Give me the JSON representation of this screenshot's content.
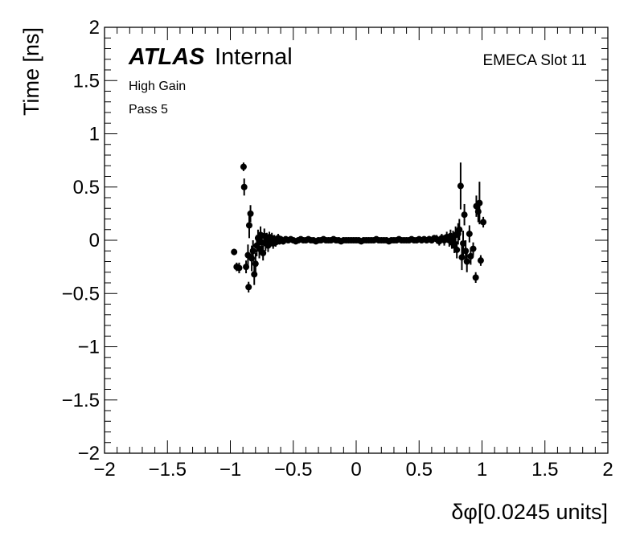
{
  "chart_data": {
    "type": "scatter",
    "xlabel": "δφ[0.0245 units]",
    "ylabel": "Time [ns]",
    "xlim": [
      -2,
      2
    ],
    "ylim": [
      -2,
      2
    ],
    "x_ticks": [
      -2,
      -1.5,
      -1,
      -0.5,
      0,
      0.5,
      1,
      1.5,
      2
    ],
    "x_tick_labels": [
      "−2",
      "−1.5",
      "−1",
      "−0.5",
      "0",
      "0.5",
      "1",
      "1.5",
      "2"
    ],
    "y_ticks": [
      -2,
      -1.5,
      -1,
      -0.5,
      0,
      0.5,
      1,
      1.5,
      2
    ],
    "y_tick_labels": [
      "−2",
      "−1.5",
      "−1",
      "−0.5",
      "0",
      "0.5",
      "1",
      "1.5",
      "2"
    ],
    "grid": false,
    "series": [
      {
        "marker_color": "#000000",
        "points": [
          {
            "x": -0.97,
            "y": -0.11,
            "err": 0.03
          },
          {
            "x": -0.95,
            "y": -0.25,
            "err": 0.04
          },
          {
            "x": -0.93,
            "y": -0.26,
            "err": 0.05
          },
          {
            "x": -0.895,
            "y": 0.69,
            "err": 0.04
          },
          {
            "x": -0.89,
            "y": 0.5,
            "err": 0.08
          },
          {
            "x": -0.875,
            "y": -0.25,
            "err": 0.06
          },
          {
            "x": -0.86,
            "y": -0.14,
            "err": 0.1
          },
          {
            "x": -0.855,
            "y": -0.44,
            "err": 0.05
          },
          {
            "x": -0.85,
            "y": 0.14,
            "err": 0.12
          },
          {
            "x": -0.84,
            "y": 0.25,
            "err": 0.08
          },
          {
            "x": -0.83,
            "y": -0.17,
            "err": 0.12
          },
          {
            "x": -0.82,
            "y": -0.1,
            "err": 0.1
          },
          {
            "x": -0.81,
            "y": -0.32,
            "err": 0.1
          },
          {
            "x": -0.8,
            "y": -0.22,
            "err": 0.1
          },
          {
            "x": -0.79,
            "y": -0.05,
            "err": 0.1
          },
          {
            "x": -0.78,
            "y": 0.02,
            "err": 0.08
          },
          {
            "x": -0.77,
            "y": -0.08,
            "err": 0.09
          },
          {
            "x": -0.76,
            "y": 0.05,
            "err": 0.08
          },
          {
            "x": -0.75,
            "y": -0.02,
            "err": 0.08
          },
          {
            "x": -0.74,
            "y": -0.12,
            "err": 0.07
          },
          {
            "x": -0.73,
            "y": 0.04,
            "err": 0.07
          },
          {
            "x": -0.72,
            "y": -0.03,
            "err": 0.07
          },
          {
            "x": -0.71,
            "y": 0.01,
            "err": 0.06
          },
          {
            "x": -0.7,
            "y": -0.05,
            "err": 0.06
          },
          {
            "x": -0.69,
            "y": 0.03,
            "err": 0.05
          },
          {
            "x": -0.68,
            "y": -0.01,
            "err": 0.05
          },
          {
            "x": -0.67,
            "y": 0.02,
            "err": 0.05
          },
          {
            "x": -0.66,
            "y": -0.03,
            "err": 0.05
          },
          {
            "x": -0.65,
            "y": 0.01,
            "err": 0.04
          },
          {
            "x": -0.64,
            "y": -0.02,
            "err": 0.04
          },
          {
            "x": -0.63,
            "y": 0.0,
            "err": 0.04
          },
          {
            "x": -0.62,
            "y": 0.02,
            "err": 0.04
          },
          {
            "x": -0.61,
            "y": -0.01,
            "err": 0.03
          },
          {
            "x": -0.6,
            "y": 0.01,
            "err": 0.03
          },
          {
            "x": -0.58,
            "y": -0.01,
            "err": 0.03
          },
          {
            "x": -0.56,
            "y": 0.01,
            "err": 0.02
          },
          {
            "x": -0.54,
            "y": 0.0,
            "err": 0.02
          },
          {
            "x": -0.52,
            "y": 0.01,
            "err": 0.02
          },
          {
            "x": -0.5,
            "y": 0.0,
            "err": 0.02
          },
          {
            "x": -0.48,
            "y": -0.01,
            "err": 0.015
          },
          {
            "x": -0.46,
            "y": 0.0,
            "err": 0.015
          },
          {
            "x": -0.44,
            "y": 0.01,
            "err": 0.015
          },
          {
            "x": -0.42,
            "y": 0.0,
            "err": 0.015
          },
          {
            "x": -0.4,
            "y": 0.0,
            "err": 0.01
          },
          {
            "x": -0.38,
            "y": 0.01,
            "err": 0.01
          },
          {
            "x": -0.36,
            "y": 0.0,
            "err": 0.01
          },
          {
            "x": -0.34,
            "y": 0.0,
            "err": 0.01
          },
          {
            "x": -0.32,
            "y": -0.01,
            "err": 0.01
          },
          {
            "x": -0.3,
            "y": 0.0,
            "err": 0.01
          },
          {
            "x": -0.28,
            "y": 0.0,
            "err": 0.01
          },
          {
            "x": -0.26,
            "y": 0.01,
            "err": 0.01
          },
          {
            "x": -0.24,
            "y": 0.0,
            "err": 0.01
          },
          {
            "x": -0.22,
            "y": 0.0,
            "err": 0.01
          },
          {
            "x": -0.2,
            "y": 0.0,
            "err": 0.01
          },
          {
            "x": -0.18,
            "y": 0.01,
            "err": 0.01
          },
          {
            "x": -0.16,
            "y": 0.0,
            "err": 0.01
          },
          {
            "x": -0.14,
            "y": 0.0,
            "err": 0.01
          },
          {
            "x": -0.12,
            "y": -0.01,
            "err": 0.01
          },
          {
            "x": -0.1,
            "y": 0.0,
            "err": 0.01
          },
          {
            "x": -0.08,
            "y": 0.0,
            "err": 0.01
          },
          {
            "x": -0.06,
            "y": 0.0,
            "err": 0.01
          },
          {
            "x": -0.04,
            "y": 0.0,
            "err": 0.01
          },
          {
            "x": -0.02,
            "y": 0.0,
            "err": 0.01
          },
          {
            "x": 0.0,
            "y": 0.0,
            "err": 0.01
          },
          {
            "x": 0.02,
            "y": 0.0,
            "err": 0.01
          },
          {
            "x": 0.04,
            "y": -0.01,
            "err": 0.01
          },
          {
            "x": 0.06,
            "y": 0.0,
            "err": 0.01
          },
          {
            "x": 0.08,
            "y": 0.0,
            "err": 0.01
          },
          {
            "x": 0.1,
            "y": 0.0,
            "err": 0.01
          },
          {
            "x": 0.12,
            "y": 0.0,
            "err": 0.01
          },
          {
            "x": 0.14,
            "y": 0.0,
            "err": 0.01
          },
          {
            "x": 0.16,
            "y": 0.01,
            "err": 0.01
          },
          {
            "x": 0.18,
            "y": 0.0,
            "err": 0.01
          },
          {
            "x": 0.2,
            "y": 0.0,
            "err": 0.01
          },
          {
            "x": 0.22,
            "y": 0.0,
            "err": 0.01
          },
          {
            "x": 0.24,
            "y": 0.0,
            "err": 0.01
          },
          {
            "x": 0.26,
            "y": -0.01,
            "err": 0.01
          },
          {
            "x": 0.28,
            "y": 0.0,
            "err": 0.01
          },
          {
            "x": 0.3,
            "y": 0.0,
            "err": 0.01
          },
          {
            "x": 0.32,
            "y": 0.0,
            "err": 0.01
          },
          {
            "x": 0.34,
            "y": 0.01,
            "err": 0.01
          },
          {
            "x": 0.36,
            "y": 0.0,
            "err": 0.01
          },
          {
            "x": 0.38,
            "y": 0.0,
            "err": 0.01
          },
          {
            "x": 0.4,
            "y": 0.0,
            "err": 0.01
          },
          {
            "x": 0.42,
            "y": 0.0,
            "err": 0.015
          },
          {
            "x": 0.44,
            "y": 0.01,
            "err": 0.015
          },
          {
            "x": 0.46,
            "y": 0.0,
            "err": 0.015
          },
          {
            "x": 0.48,
            "y": 0.0,
            "err": 0.015
          },
          {
            "x": 0.5,
            "y": 0.01,
            "err": 0.02
          },
          {
            "x": 0.52,
            "y": 0.0,
            "err": 0.02
          },
          {
            "x": 0.54,
            "y": 0.01,
            "err": 0.02
          },
          {
            "x": 0.56,
            "y": 0.0,
            "err": 0.02
          },
          {
            "x": 0.58,
            "y": 0.01,
            "err": 0.03
          },
          {
            "x": 0.6,
            "y": 0.0,
            "err": 0.03
          },
          {
            "x": 0.62,
            "y": 0.02,
            "err": 0.03
          },
          {
            "x": 0.64,
            "y": 0.01,
            "err": 0.04
          },
          {
            "x": 0.66,
            "y": -0.01,
            "err": 0.04
          },
          {
            "x": 0.68,
            "y": 0.02,
            "err": 0.04
          },
          {
            "x": 0.7,
            "y": 0.0,
            "err": 0.05
          },
          {
            "x": 0.72,
            "y": 0.03,
            "err": 0.05
          },
          {
            "x": 0.74,
            "y": 0.0,
            "err": 0.06
          },
          {
            "x": 0.75,
            "y": 0.04,
            "err": 0.06
          },
          {
            "x": 0.76,
            "y": -0.02,
            "err": 0.06
          },
          {
            "x": 0.77,
            "y": 0.02,
            "err": 0.07
          },
          {
            "x": 0.78,
            "y": -0.05,
            "err": 0.07
          },
          {
            "x": 0.79,
            "y": 0.05,
            "err": 0.08
          },
          {
            "x": 0.8,
            "y": -0.09,
            "err": 0.08
          },
          {
            "x": 0.81,
            "y": 0.06,
            "err": 0.1
          },
          {
            "x": 0.82,
            "y": 0.1,
            "err": 0.1
          },
          {
            "x": 0.83,
            "y": 0.51,
            "err": 0.22
          },
          {
            "x": 0.84,
            "y": -0.16,
            "err": 0.12
          },
          {
            "x": 0.85,
            "y": -0.03,
            "err": 0.12
          },
          {
            "x": 0.86,
            "y": 0.24,
            "err": 0.1
          },
          {
            "x": 0.87,
            "y": -0.1,
            "err": 0.1
          },
          {
            "x": 0.88,
            "y": -0.2,
            "err": 0.1
          },
          {
            "x": 0.9,
            "y": 0.06,
            "err": 0.08
          },
          {
            "x": 0.91,
            "y": -0.15,
            "err": 0.08
          },
          {
            "x": 0.93,
            "y": -0.08,
            "err": 0.06
          },
          {
            "x": 0.95,
            "y": -0.35,
            "err": 0.05
          },
          {
            "x": 0.955,
            "y": 0.32,
            "err": 0.1
          },
          {
            "x": 0.97,
            "y": 0.27,
            "err": 0.1
          },
          {
            "x": 0.98,
            "y": 0.35,
            "err": 0.2
          },
          {
            "x": 0.99,
            "y": -0.19,
            "err": 0.05
          },
          {
            "x": 1.01,
            "y": 0.17,
            "err": 0.05
          }
        ]
      }
    ],
    "atlas_label": {
      "bold": "ATLAS",
      "normal": "Internal"
    },
    "annotations": {
      "gain": "High Gain",
      "pass": "Pass 5",
      "slot": "EMECA Slot 11"
    }
  }
}
